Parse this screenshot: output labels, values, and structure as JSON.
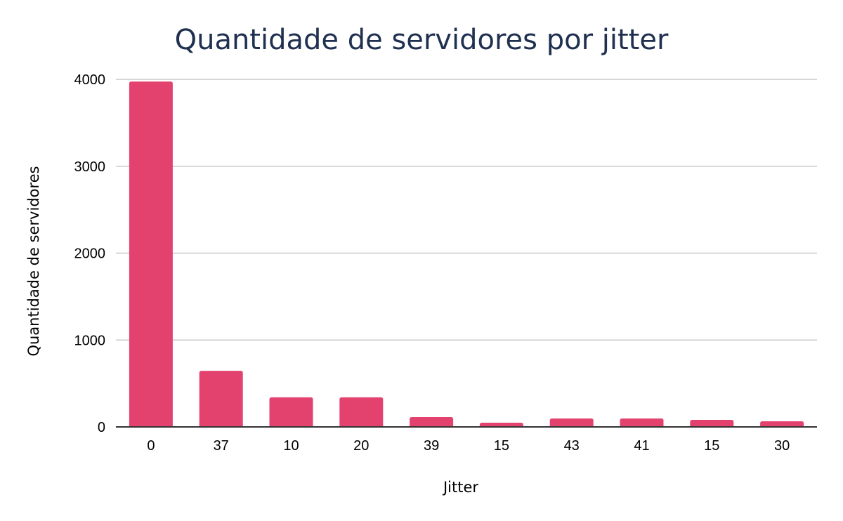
{
  "chart_data": {
    "type": "bar",
    "title": "Quantidade de servidores por jitter",
    "xlabel": "Jitter",
    "ylabel": "Quantidade de servidores",
    "categories": [
      "0",
      "37",
      "10",
      "20",
      "39",
      "15",
      "43",
      "41",
      "15",
      "30"
    ],
    "values": [
      3975,
      645,
      340,
      340,
      113,
      48,
      97,
      97,
      81,
      65
    ],
    "ylim": [
      0,
      4000
    ],
    "yticks": [
      "0",
      "1000",
      "2000",
      "3000",
      "4000"
    ],
    "ytick_values": [
      0,
      1000,
      2000,
      3000,
      4000
    ],
    "grid": true,
    "legend": "none",
    "bar_color": "#e3426f"
  }
}
